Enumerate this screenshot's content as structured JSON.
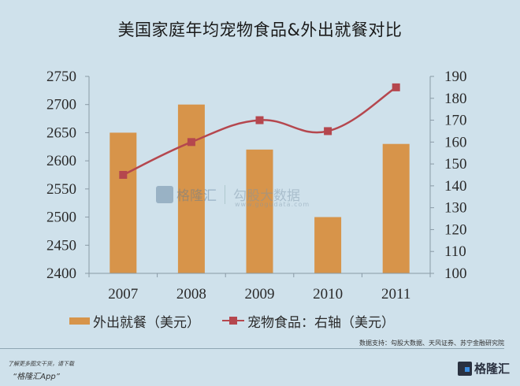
{
  "title": "美国家庭年均宠物食品&外出就餐对比",
  "chart_data": {
    "type": "bar+line",
    "title": "美国家庭年均宠物食品&外出就餐对比",
    "categories": [
      "2007",
      "2008",
      "2009",
      "2010",
      "2011"
    ],
    "series": [
      {
        "name": "外出就餐（美元）",
        "type": "bar",
        "axis": "left",
        "color": "#d7944a",
        "values": [
          2650,
          2700,
          2620,
          2500,
          2630
        ]
      },
      {
        "name": "宠物食品：右轴（美元）",
        "type": "line",
        "axis": "right",
        "color": "#b5474e",
        "values": [
          145,
          160,
          170,
          165,
          185
        ]
      }
    ],
    "left_axis": {
      "ylim": [
        2400,
        2750
      ],
      "ticks": [
        "2750",
        "2700",
        "2650",
        "2600",
        "2550",
        "2500",
        "2450",
        "2400"
      ]
    },
    "right_axis": {
      "ylim": [
        100,
        190
      ],
      "ticks": [
        "190",
        "180",
        "170",
        "160",
        "150",
        "140",
        "130",
        "120",
        "110",
        "100"
      ]
    },
    "grid": false,
    "legend_position": "bottom"
  },
  "legend": {
    "bar_label": "外出就餐（美元）",
    "line_label": "宠物食品：右轴（美元）"
  },
  "watermark": {
    "brand": "格隆汇",
    "partner": "勾股大数据",
    "url": "www.gogudata.com"
  },
  "source": "数据支持：勾股大数据、天风证券、苏宁金融研究院",
  "footer": {
    "promo_line1": "了解更多图文干货，请下载",
    "promo_line2": "“格隆汇App”",
    "logo_text": "格隆汇"
  }
}
